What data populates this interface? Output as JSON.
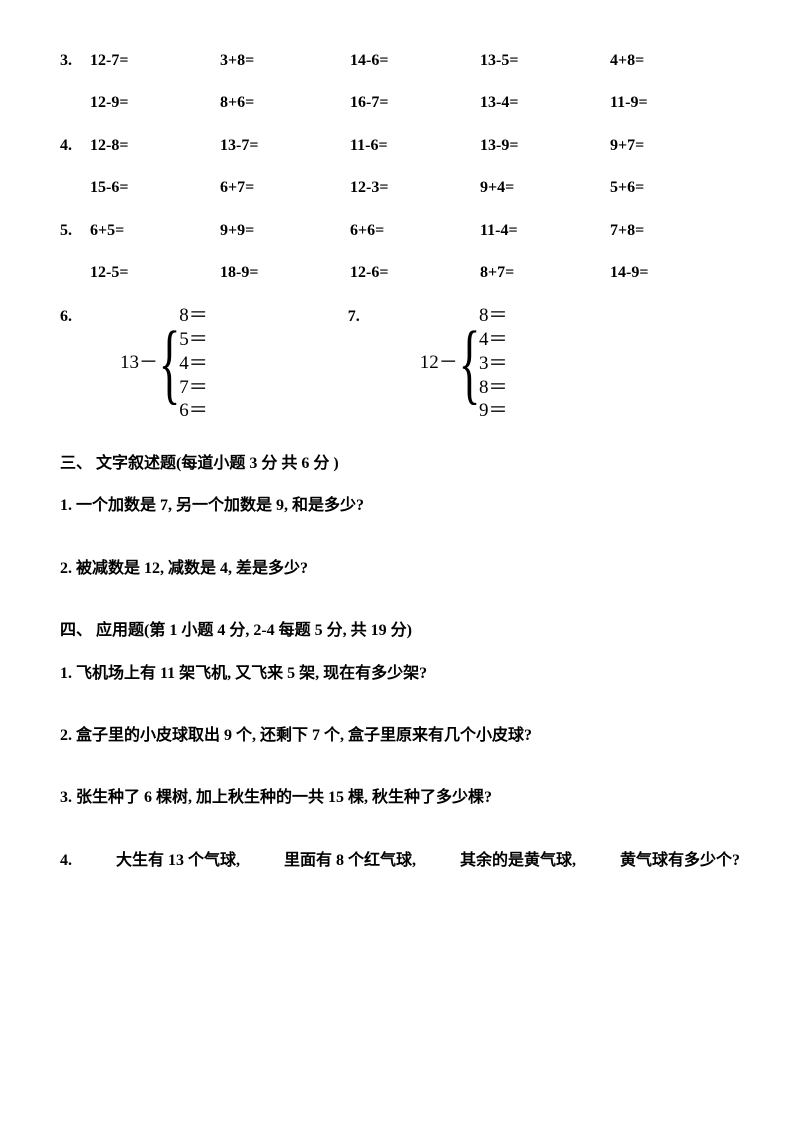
{
  "eq_rows": [
    {
      "num": "3.",
      "cells": [
        "12-7=",
        "3+8=",
        "14-6=",
        "13-5=",
        "4+8="
      ]
    },
    {
      "num": "",
      "cells": [
        "12-9=",
        "8+6=",
        "16-7=",
        "13-4=",
        "11-9="
      ]
    },
    {
      "num": "4.",
      "cells": [
        "12-8=",
        "13-7=",
        "11-6=",
        "13-9=",
        "9+7="
      ]
    },
    {
      "num": "",
      "cells": [
        "15-6=",
        "6+7=",
        "12-3=",
        "9+4=",
        "5+6="
      ]
    },
    {
      "num": "5.",
      "cells": [
        "6+5=",
        "9+9=",
        "6+6=",
        "11-4=",
        "7+8="
      ]
    },
    {
      "num": "",
      "cells": [
        "12-5=",
        "18-9=",
        "12-6=",
        "8+7=",
        "14-9="
      ]
    }
  ],
  "braces": {
    "left": {
      "num": "6.",
      "prefix": "13－",
      "items": [
        "8＝",
        "5＝",
        "4＝",
        "7＝",
        "6＝"
      ]
    },
    "right": {
      "num": "7.",
      "prefix": "12－",
      "items": [
        "8＝",
        "4＝",
        "3＝",
        "8＝",
        "9＝"
      ]
    }
  },
  "section3": {
    "title": "三、  文字叙述题(每道小题  3 分  共  6 分  )",
    "q1": "1.  一个加数是 7,  另一个加数是 9,  和是多少?",
    "q2": "2.  被减数是 12,  减数是 4,  差是多少?"
  },
  "section4": {
    "title": "四、  应用题(第 1 小题  4 分, 2-4 每题  5 分,  共  19 分)",
    "q1": "1.  飞机场上有 11 架飞机,  又飞来 5 架,  现在有多少架?",
    "q2": "2.  盒子里的小皮球取出 9 个,  还剩下 7 个,  盒子里原来有几个小皮球?",
    "q3": "3.  张生种了 6 棵树,  加上秋生种的一共 15 棵,  秋生种了多少棵?",
    "q4_parts": [
      "4.",
      "大生有 13 个气球,",
      "里面有 8 个红气球,",
      "其余的是黄气球,",
      "黄气球有多少个?"
    ]
  }
}
